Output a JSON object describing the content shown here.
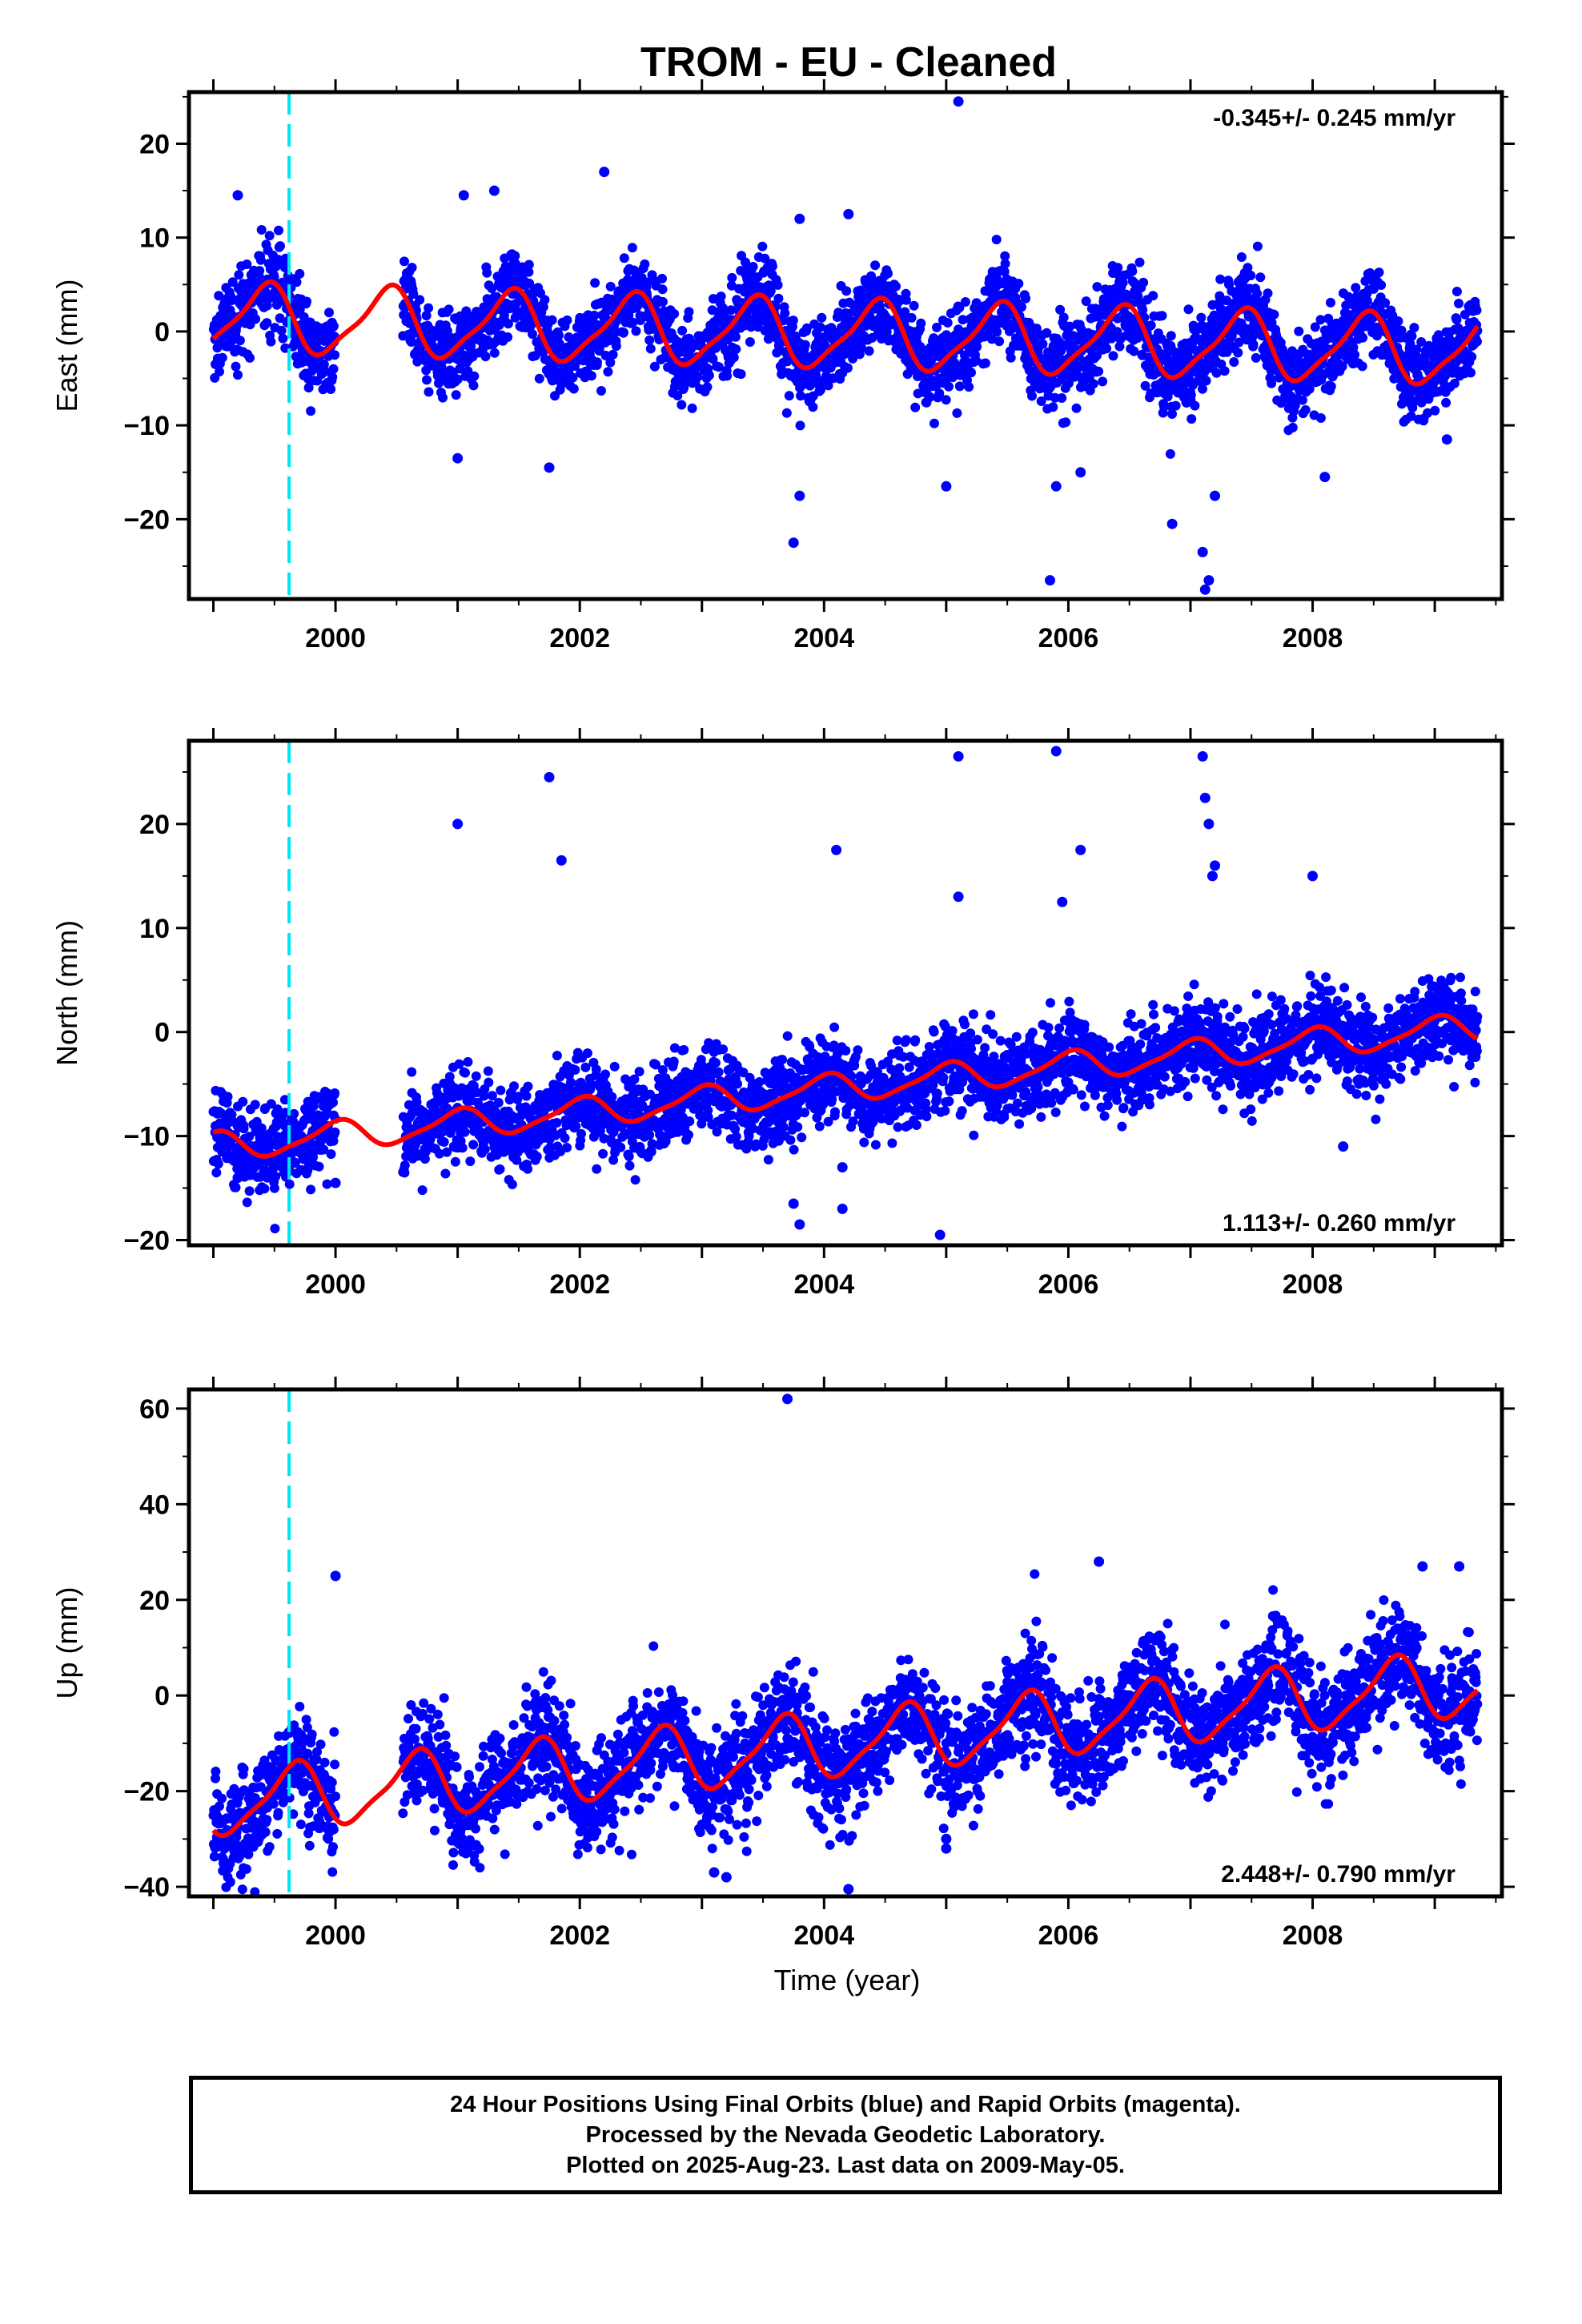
{
  "page": {
    "title": "TROM  - EU - Cleaned",
    "xlabel": "Time (year)"
  },
  "footer": {
    "line1": "24 Hour Positions Using Final Orbits (blue) and Rapid Orbits (magenta).",
    "line2": "Processed by the Nevada Geodetic Laboratory.",
    "line3": "Plotted on 2025-Aug-23. Last data on 2009-May-05."
  },
  "colors": {
    "points": "#0000ff",
    "model": "#ff0000",
    "marker": "#00e5ee",
    "frame": "#000000"
  },
  "chart_data": [
    {
      "type": "scatter",
      "name": "east",
      "ylabel": "East (mm)",
      "rate": "-0.345+/- 0.245 mm/yr",
      "rate_position": "top-right",
      "xlim": [
        1998.8,
        2009.55
      ],
      "ylim": [
        -28.5,
        25.5
      ],
      "xticks": [
        2000,
        2002,
        2004,
        2006,
        2008
      ],
      "yticks": [
        -20,
        -10,
        0,
        10,
        20
      ],
      "marker_line_x": 1999.62,
      "data_span": [
        1999.0,
        2009.35
      ],
      "data_gap": [
        2000.0,
        2000.55
      ],
      "trend_mm_per_yr": -0.345,
      "offset_mm": -0.3,
      "annual_amplitude_mm": 3.5,
      "annual_peak_phase_yr": 0.42,
      "noise_sd_mm": 2.2,
      "outliers": [
        [
          1999.2,
          14.5
        ],
        [
          2001.05,
          14.5
        ],
        [
          2001.3,
          15
        ],
        [
          2002.2,
          17
        ],
        [
          2003.8,
          12
        ],
        [
          2004.2,
          12.5
        ],
        [
          2005.1,
          24.5
        ],
        [
          2001.0,
          -13.5
        ],
        [
          2001.75,
          -14.5
        ],
        [
          2003.75,
          -22.5
        ],
        [
          2003.8,
          -17.5
        ],
        [
          2005.0,
          -16.5
        ],
        [
          2005.9,
          -16.5
        ],
        [
          2005.85,
          -26.5
        ],
        [
          2006.1,
          -15
        ],
        [
          2006.85,
          -20.5
        ],
        [
          2007.1,
          -23.5
        ],
        [
          2007.12,
          -27.5
        ],
        [
          2007.15,
          -26.5
        ],
        [
          2007.2,
          -17.5
        ],
        [
          2008.1,
          -15.5
        ],
        [
          2009.1,
          -11.5
        ]
      ],
      "model_note": "red curve = fitted trend + annual + semiannual terms"
    },
    {
      "type": "scatter",
      "name": "north",
      "ylabel": "North (mm)",
      "rate": "1.113+/- 0.260 mm/yr",
      "rate_position": "bottom-right",
      "xlim": [
        1998.8,
        2009.55
      ],
      "ylim": [
        -20.5,
        28
      ],
      "xticks": [
        2000,
        2002,
        2004,
        2006,
        2008
      ],
      "yticks": [
        -20,
        -10,
        0,
        10,
        20
      ],
      "marker_line_x": 1999.62,
      "data_span": [
        1999.0,
        2009.35
      ],
      "data_gap": [
        2000.0,
        2000.55
      ],
      "trend_mm_per_yr": 1.113,
      "offset_mm": -5.5,
      "annual_amplitude_mm": 1.3,
      "annual_peak_phase_yr": 0.0,
      "noise_sd_mm": 2.0,
      "outliers": [
        [
          2001.0,
          20
        ],
        [
          2001.75,
          24.5
        ],
        [
          2001.85,
          16.5
        ],
        [
          2004.1,
          17.5
        ],
        [
          2005.1,
          26.5
        ],
        [
          2005.1,
          13
        ],
        [
          2005.9,
          27
        ],
        [
          2006.1,
          17.5
        ],
        [
          2005.95,
          12.5
        ],
        [
          2007.1,
          26.5
        ],
        [
          2007.12,
          22.5
        ],
        [
          2007.15,
          20
        ],
        [
          2007.2,
          16
        ],
        [
          2007.18,
          15
        ],
        [
          2008.0,
          15
        ],
        [
          2008.25,
          -11
        ],
        [
          2003.75,
          -16.5
        ],
        [
          2003.8,
          -18.5
        ],
        [
          2004.15,
          -13
        ],
        [
          2004.15,
          -17
        ],
        [
          2004.95,
          -19.5
        ],
        [
          1999.2,
          -14
        ],
        [
          2000.0,
          -14.5
        ]
      ],
      "model_note": "red curve = fitted trend + annual + semiannual terms"
    },
    {
      "type": "scatter",
      "name": "up",
      "ylabel": "Up (mm)",
      "rate": "2.448+/- 0.790 mm/yr",
      "rate_position": "bottom-right",
      "xlim": [
        1998.8,
        2009.55
      ],
      "ylim": [
        -42,
        64
      ],
      "xticks": [
        2000,
        2002,
        2004,
        2006,
        2008
      ],
      "yticks": [
        -40,
        -20,
        0,
        20,
        40,
        60
      ],
      "marker_line_x": 1999.62,
      "data_span": [
        1999.0,
        2009.35
      ],
      "data_gap": [
        2000.0,
        2000.55
      ],
      "trend_mm_per_yr": 2.448,
      "offset_mm": -10.5,
      "annual_amplitude_mm": 6.5,
      "annual_peak_phase_yr": 0.65,
      "noise_sd_mm": 5.5,
      "outliers": [
        [
          2003.7,
          62
        ],
        [
          2000.0,
          25
        ],
        [
          2005.0,
          -30
        ],
        [
          2005.0,
          -32
        ],
        [
          2004.2,
          -40.5
        ],
        [
          2003.1,
          -37
        ],
        [
          2003.2,
          -38
        ],
        [
          2008.9,
          27
        ],
        [
          2009.2,
          27
        ],
        [
          2006.25,
          28
        ]
      ],
      "model_note": "red curve = fitted trend + annual + semiannual terms"
    }
  ]
}
